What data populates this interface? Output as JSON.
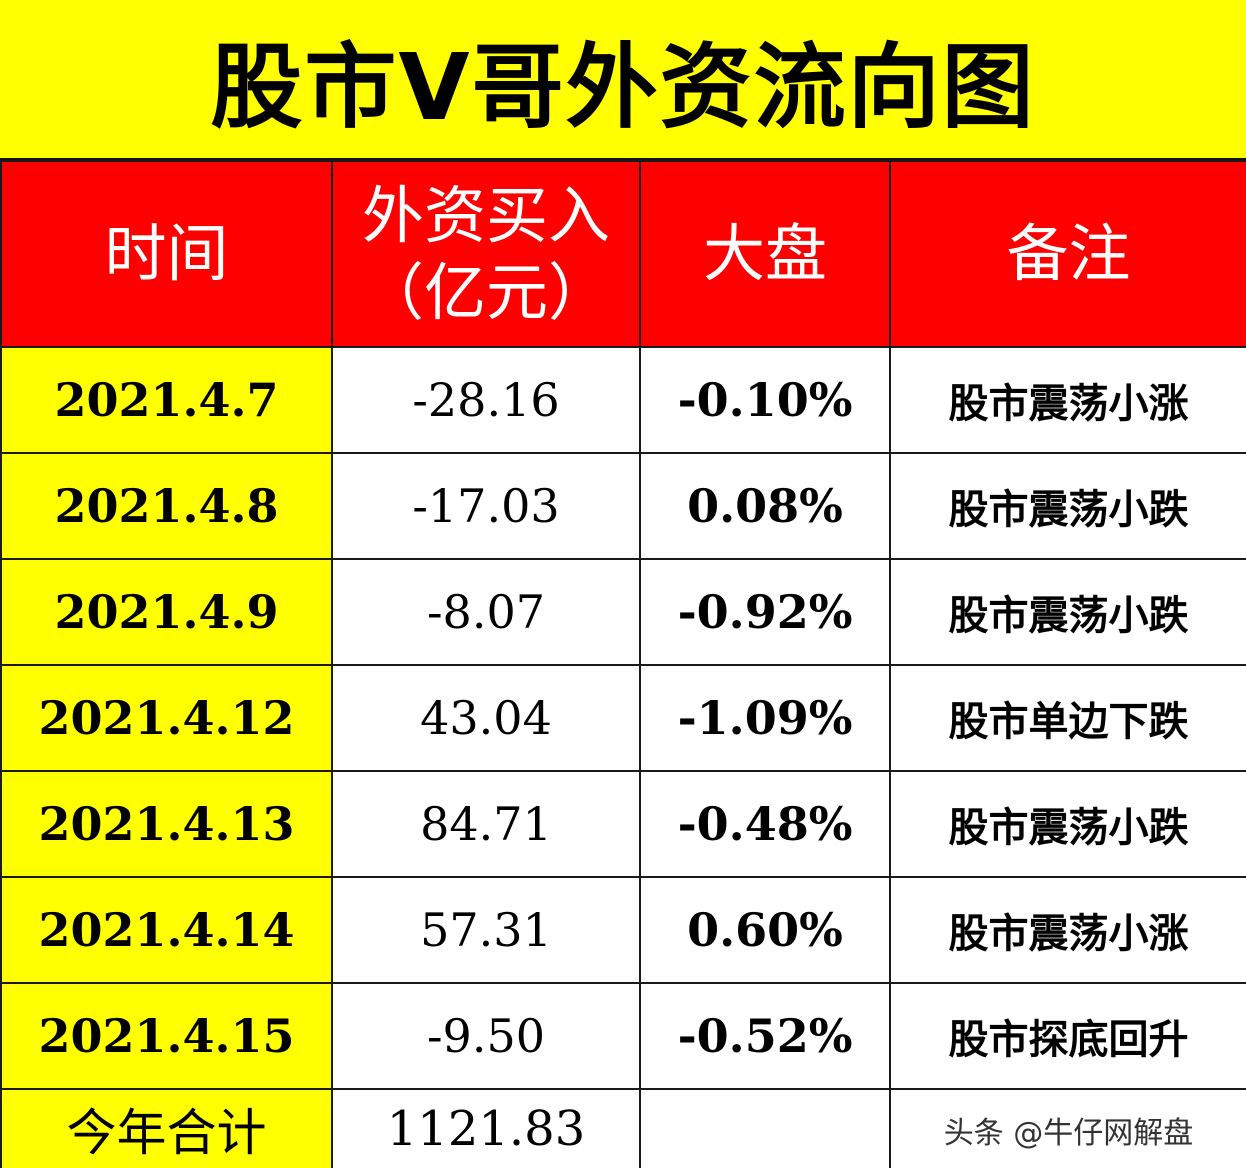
{
  "title": "股市V哥外资流向图",
  "watermark": "头条 @牛仔网解盘",
  "colors": {
    "title_bg": "#ffff00",
    "header_bg": "#ff0000",
    "date_bg": "#ffff00"
  },
  "chart_data": {
    "type": "table",
    "columns": [
      "时间",
      "外资买入（亿元）",
      "大盘",
      "备注"
    ],
    "header": {
      "time": "时间",
      "buy_line1": "外资买入",
      "buy_line2": "（亿元）",
      "index": "大盘",
      "note": "备注"
    },
    "rows": [
      {
        "date": "2021.4.7",
        "buy": "-28.16",
        "index": "-0.10%",
        "note": "股市震荡小涨"
      },
      {
        "date": "2021.4.8",
        "buy": "-17.03",
        "index": "0.08%",
        "note": "股市震荡小跌"
      },
      {
        "date": "2021.4.9",
        "buy": "-8.07",
        "index": "-0.92%",
        "note": "股市震荡小跌"
      },
      {
        "date": "2021.4.12",
        "buy": "43.04",
        "index": "-1.09%",
        "note": "股市单边下跌"
      },
      {
        "date": "2021.4.13",
        "buy": "84.71",
        "index": "-0.48%",
        "note": "股市震荡小跌"
      },
      {
        "date": "2021.4.14",
        "buy": "57.31",
        "index": "0.60%",
        "note": "股市震荡小涨"
      },
      {
        "date": "2021.4.15",
        "buy": "-9.50",
        "index": "-0.52%",
        "note": "股市探底回升"
      }
    ],
    "total": {
      "label": "今年合计",
      "buy": "1121.83"
    }
  }
}
